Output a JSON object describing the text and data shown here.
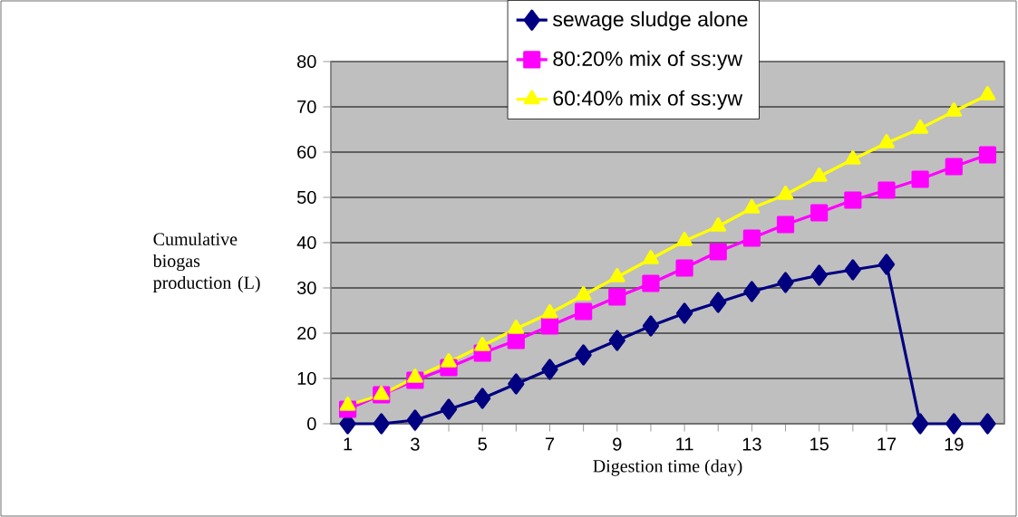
{
  "chart_data": {
    "type": "line",
    "xlabel": "Digestion time (day)",
    "ylabel": "Cumulative biogas production (L)",
    "categories": [
      "1",
      null,
      "3",
      null,
      "5",
      null,
      "7",
      null,
      "9",
      null,
      "11",
      null,
      "13",
      null,
      "15",
      null,
      "17",
      null,
      "19",
      null
    ],
    "series": [
      {
        "name": "sewage sludge alone",
        "color": "#000080",
        "marker": "diamond",
        "values": [
          0,
          0,
          0.8,
          3.2,
          5.6,
          8.8,
          12,
          15.2,
          18.4,
          21.6,
          24.4,
          26.8,
          29.2,
          31.2,
          32.8,
          34,
          35.2,
          0,
          0,
          0
        ]
      },
      {
        "name": "80:20% mix of ss:yw",
        "color": "#ff00ff",
        "marker": "square",
        "values": [
          3.2,
          6.4,
          9.6,
          12.4,
          15.6,
          18.4,
          21.6,
          24.8,
          28,
          31,
          34.4,
          38,
          41,
          44,
          46.6,
          49.4,
          51.6,
          54,
          56.8,
          59.4
        ]
      },
      {
        "name": "60:40% mix of ss:yw",
        "color": "#ffff00",
        "marker": "triangle",
        "values": [
          4,
          6.4,
          10.2,
          13.6,
          17.2,
          21,
          24.4,
          28.4,
          32.4,
          36.4,
          40.4,
          43.6,
          47.6,
          50.6,
          54.6,
          58.4,
          62,
          65.2,
          69,
          72.6
        ]
      }
    ],
    "ylim": [
      0,
      80
    ],
    "yticks": [
      0,
      10,
      20,
      30,
      40,
      50,
      60,
      70,
      80
    ],
    "grid": "y",
    "legend": "top"
  }
}
